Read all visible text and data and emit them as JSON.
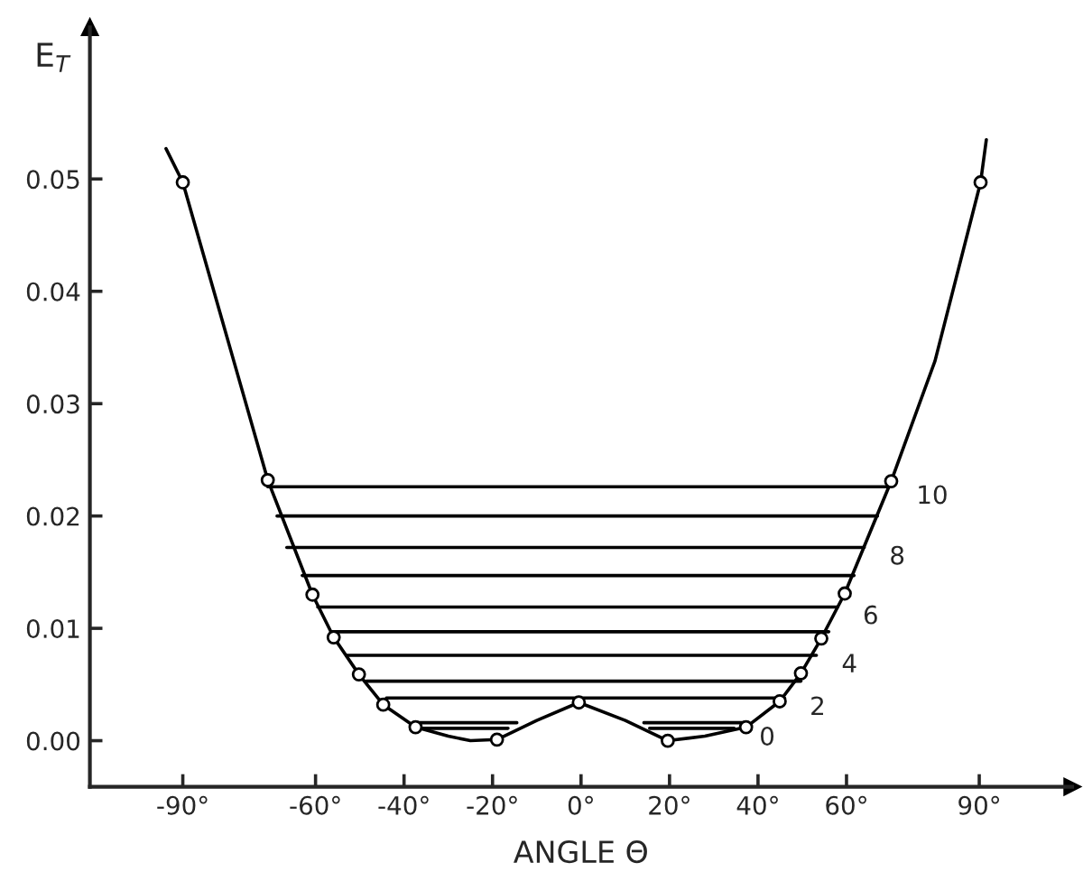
{
  "chart_data": {
    "type": "line",
    "ylabel": "E$_{T}$",
    "xlabel": "ANGLE Θ",
    "xlim": [
      -111,
      111
    ],
    "ylim": [
      -0.0041,
      0.0635
    ],
    "xticks": [
      {
        "value": -90,
        "label": "-90°"
      },
      {
        "value": -60,
        "label": "-60°"
      },
      {
        "value": -40,
        "label": "-40°"
      },
      {
        "value": -20,
        "label": "-20°"
      },
      {
        "value": 0,
        "label": "0°"
      },
      {
        "value": 20,
        "label": "20°"
      },
      {
        "value": 40,
        "label": "40°"
      },
      {
        "value": 60,
        "label": "60°"
      },
      {
        "value": 90,
        "label": "90°"
      }
    ],
    "yticks": [
      {
        "value": 0,
        "label": "0.00"
      },
      {
        "value": 0.01,
        "label": "0.01"
      },
      {
        "value": 0.02,
        "label": "0.02"
      },
      {
        "value": 0.03,
        "label": "0.03"
      },
      {
        "value": 0.04,
        "label": "0.04"
      },
      {
        "value": 0.05,
        "label": "0.05"
      }
    ],
    "grid": false,
    "legend": false,
    "series": [
      {
        "color": "#000000",
        "x": [
          -93.8,
          -90,
          -80,
          -70.8,
          -60.7,
          -55.9,
          -50.2,
          -44.7,
          -37.4,
          -30,
          -25,
          -19,
          -10,
          -0.5,
          10,
          19.6,
          28,
          37.3,
          44.9,
          49.7,
          54.3,
          59.6,
          70.1,
          80,
          90.3,
          91.6
        ],
        "values": [
          0.0527,
          0.0497,
          0.0359,
          0.0232,
          0.013,
          0.0092,
          0.0059,
          0.0032,
          0.0012,
          0.0004,
          0.0,
          0.0001,
          0.0018,
          0.0034,
          0.0018,
          0.0,
          0.0004,
          0.0012,
          0.0035,
          0.006,
          0.0091,
          0.0131,
          0.0231,
          0.0338,
          0.0497,
          0.0535
        ]
      },
      {
        "type": "scatter",
        "color": "#000000",
        "marker": "circle",
        "x": [
          -90,
          -70.8,
          -60.7,
          -55.9,
          -50.2,
          -44.7,
          -37.4,
          -19,
          -0.5,
          19.6,
          37.3,
          44.9,
          49.7,
          54.3,
          59.6,
          70.1,
          90.3
        ],
        "values": [
          0.0497,
          0.0232,
          0.013,
          0.0092,
          0.0059,
          0.0032,
          0.0012,
          0.0001,
          0.0034,
          0.0,
          0.0012,
          0.0035,
          0.006,
          0.0091,
          0.0131,
          0.0231,
          0.0497
        ]
      },
      {
        "type": "line",
        "color": "#000000",
        "x": [
          -36.4,
          -16.5,
          0,
          15.5,
          34.6
        ],
        "values": [
          0.0011,
          0.0011,
          null,
          0.0011,
          0.0011
        ]
      },
      {
        "type": "line",
        "color": "#000000",
        "x": [
          -37.6,
          -14.5,
          0,
          14.2,
          37.4
        ],
        "values": [
          0.0016,
          0.0016,
          null,
          0.0016,
          0.0016
        ]
      },
      {
        "type": "line",
        "color": "#000000",
        "x": [
          -44,
          46
        ],
        "values": [
          0.0038,
          0.0038
        ]
      },
      {
        "type": "line",
        "color": "#000000",
        "x": [
          -48.5,
          49.7
        ],
        "values": [
          0.0053,
          0.0053
        ]
      },
      {
        "type": "line",
        "color": "#000000",
        "x": [
          -53,
          53.2
        ],
        "values": [
          0.0076,
          0.0076
        ]
      },
      {
        "type": "line",
        "color": "#000000",
        "x": [
          -56.5,
          56
        ],
        "values": [
          0.0097,
          0.0097
        ]
      },
      {
        "type": "line",
        "color": "#000000",
        "x": [
          -59.5,
          58
        ],
        "values": [
          0.0119,
          0.0119
        ]
      },
      {
        "type": "line",
        "color": "#000000",
        "x": [
          -63,
          61.7
        ],
        "values": [
          0.0147,
          0.0147
        ]
      },
      {
        "type": "line",
        "color": "#000000",
        "x": [
          -66.5,
          64
        ],
        "values": [
          0.0172,
          0.0172
        ]
      },
      {
        "type": "line",
        "color": "#000000",
        "x": [
          -68.7,
          67
        ],
        "values": [
          0.02,
          0.02
        ]
      },
      {
        "type": "line",
        "color": "#000000",
        "x": [
          -70.8,
          70.1
        ],
        "values": [
          0.0226,
          0.0226
        ]
      }
    ],
    "annotations": [
      {
        "text": "0",
        "x": 34.6,
        "y": 0.0011
      },
      {
        "text": "2",
        "x": 46,
        "y": 0.0038
      },
      {
        "text": "4",
        "x": 53.2,
        "y": 0.0076
      },
      {
        "text": "6",
        "x": 58,
        "y": 0.0119
      },
      {
        "text": "8",
        "x": 64,
        "y": 0.0172
      },
      {
        "text": "10",
        "x": 70.1,
        "y": 0.0226
      }
    ]
  }
}
